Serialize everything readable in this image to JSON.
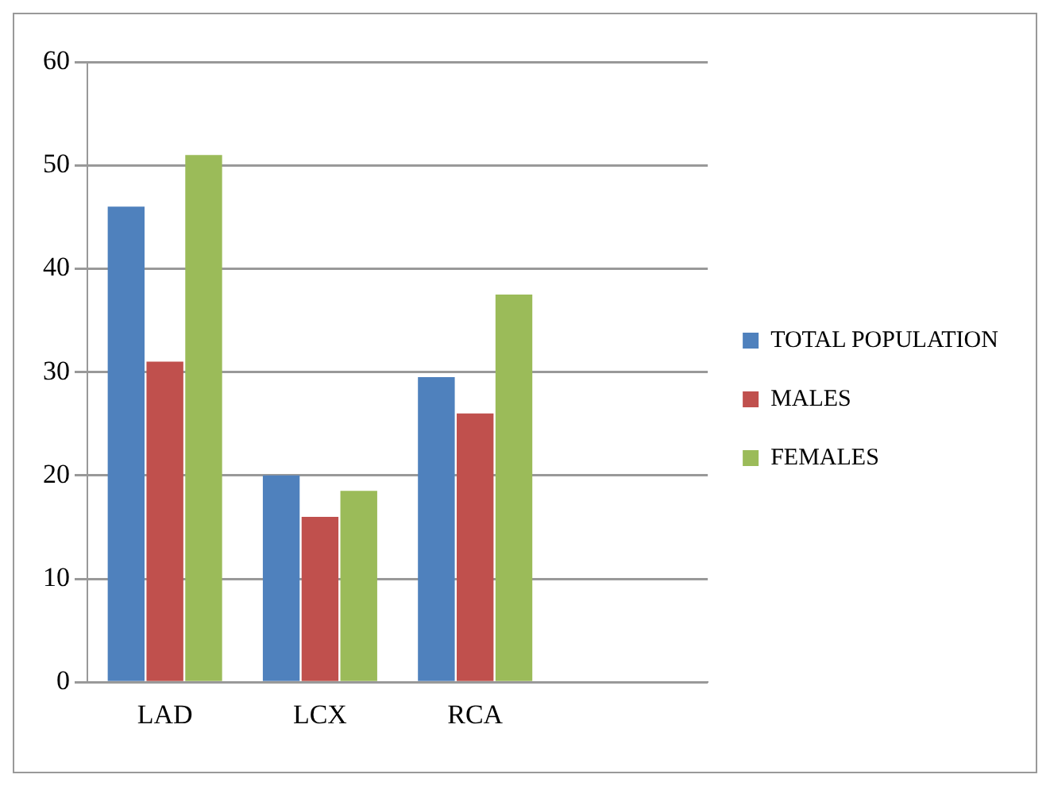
{
  "chart_data": {
    "type": "bar",
    "categories": [
      "LAD",
      "LCX",
      "RCA",
      null
    ],
    "series": [
      {
        "name": "TOTAL POPULATION",
        "color": "#4f81bd",
        "values": [
          46,
          20,
          29.5,
          null
        ]
      },
      {
        "name": "MALES",
        "color": "#c0504d",
        "values": [
          31,
          16,
          26,
          null
        ]
      },
      {
        "name": "FEMALES",
        "color": "#9bbb59",
        "values": [
          51,
          18.5,
          37.5,
          null
        ]
      }
    ],
    "ylim": [
      0,
      60
    ],
    "yticks": [
      0,
      10,
      20,
      30,
      40,
      50,
      60
    ],
    "grid": "y",
    "legend": "right"
  }
}
